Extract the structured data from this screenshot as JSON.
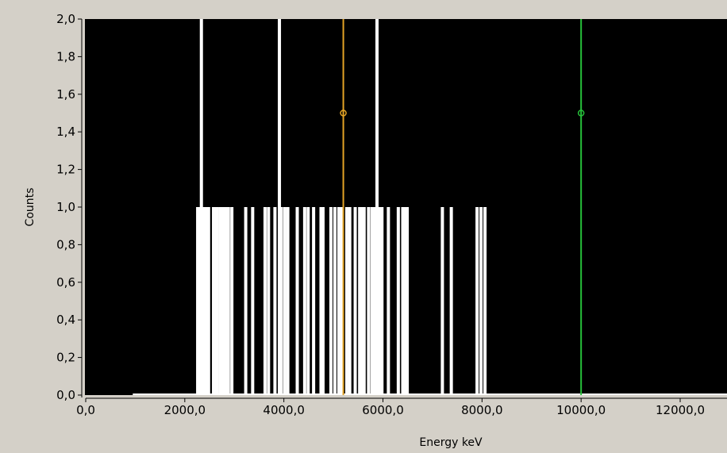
{
  "chart_data": {
    "type": "bar",
    "xlabel": "Energy keV",
    "ylabel": "Counts",
    "xlim": [
      0,
      13000
    ],
    "ylim": [
      0,
      2.0
    ],
    "x_ticks": [
      0,
      2000,
      4000,
      6000,
      8000,
      10000,
      12000
    ],
    "x_tick_labels": [
      "0,0",
      "2000,0",
      "4000,0",
      "6000,0",
      "8000,0",
      "10000,0",
      "12000,0"
    ],
    "y_ticks": [
      0,
      0.2,
      0.4,
      0.6,
      0.8,
      1.0,
      1.2,
      1.4,
      1.6,
      1.8,
      2.0
    ],
    "y_tick_labels": [
      "0,0",
      "0,2",
      "0,4",
      "0,6",
      "0,8",
      "1,0",
      "1,2",
      "1,4",
      "1,6",
      "1,8",
      "2,0"
    ],
    "grid": false,
    "plot_background": "#000000",
    "bar_color": "#ffffff",
    "baseline": {
      "x_start": 950,
      "x_end": 13000,
      "value": 0
    },
    "bins": [
      {
        "x": 2260,
        "count": 1
      },
      {
        "x": 2290,
        "count": 1
      },
      {
        "x": 2335,
        "count": 2
      },
      {
        "x": 2380,
        "count": 1
      },
      {
        "x": 2440,
        "count": 1
      },
      {
        "x": 2480,
        "count": 1
      },
      {
        "x": 2580,
        "count": 1
      },
      {
        "x": 2610,
        "count": 1
      },
      {
        "x": 2650,
        "count": 1
      },
      {
        "x": 2710,
        "count": 1
      },
      {
        "x": 2760,
        "count": 1
      },
      {
        "x": 2810,
        "count": 1
      },
      {
        "x": 2850,
        "count": 1
      },
      {
        "x": 2880,
        "count": 1
      },
      {
        "x": 2950,
        "count": 1
      },
      {
        "x": 3230,
        "count": 1
      },
      {
        "x": 3370,
        "count": 1
      },
      {
        "x": 3620,
        "count": 1
      },
      {
        "x": 3690,
        "count": 1
      },
      {
        "x": 3820,
        "count": 1
      },
      {
        "x": 3910,
        "count": 2
      },
      {
        "x": 3950,
        "count": 1
      },
      {
        "x": 4020,
        "count": 1
      },
      {
        "x": 4080,
        "count": 1
      },
      {
        "x": 4270,
        "count": 1
      },
      {
        "x": 4420,
        "count": 1
      },
      {
        "x": 4490,
        "count": 1
      },
      {
        "x": 4600,
        "count": 1
      },
      {
        "x": 4750,
        "count": 1
      },
      {
        "x": 4790,
        "count": 1
      },
      {
        "x": 4950,
        "count": 1
      },
      {
        "x": 5030,
        "count": 1
      },
      {
        "x": 5110,
        "count": 1
      },
      {
        "x": 5170,
        "count": 1
      },
      {
        "x": 5270,
        "count": 1
      },
      {
        "x": 5330,
        "count": 1
      },
      {
        "x": 5440,
        "count": 1
      },
      {
        "x": 5530,
        "count": 1
      },
      {
        "x": 5580,
        "count": 1
      },
      {
        "x": 5620,
        "count": 1
      },
      {
        "x": 5710,
        "count": 1
      },
      {
        "x": 5780,
        "count": 1
      },
      {
        "x": 5830,
        "count": 1
      },
      {
        "x": 5880,
        "count": 2
      },
      {
        "x": 5930,
        "count": 1
      },
      {
        "x": 5980,
        "count": 1
      },
      {
        "x": 6110,
        "count": 1
      },
      {
        "x": 6310,
        "count": 1
      },
      {
        "x": 6400,
        "count": 1
      },
      {
        "x": 6450,
        "count": 1
      },
      {
        "x": 6490,
        "count": 1
      },
      {
        "x": 7200,
        "count": 1
      },
      {
        "x": 7380,
        "count": 1
      },
      {
        "x": 7900,
        "count": 1
      },
      {
        "x": 7980,
        "count": 1
      },
      {
        "x": 8060,
        "count": 1
      }
    ],
    "cursors": [
      {
        "x": 5200,
        "y": 1.5,
        "color": "#e3a325"
      },
      {
        "x": 10000,
        "y": 1.5,
        "color": "#26c13a"
      }
    ]
  }
}
